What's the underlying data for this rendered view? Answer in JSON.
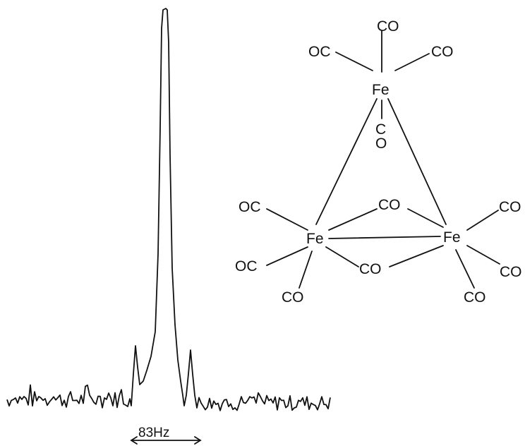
{
  "spectrum": {
    "scale_label": "83Hz"
  },
  "structure": {
    "atoms": {
      "fe_top": "Fe",
      "fe_left": "Fe",
      "fe_right": "Fe"
    },
    "ligands": {
      "top_axial_up": "CO",
      "top_left": "OC",
      "top_right": "CO",
      "top_axial_down_c": "C",
      "top_axial_down_o": "O",
      "left_upper": "OC",
      "left_lower": "OC",
      "left_bottom": "CO",
      "bridge_upper": "CO",
      "bridge_lower": "CO",
      "right_upper": "CO",
      "right_lower": "CO",
      "right_bottom": "CO"
    }
  }
}
